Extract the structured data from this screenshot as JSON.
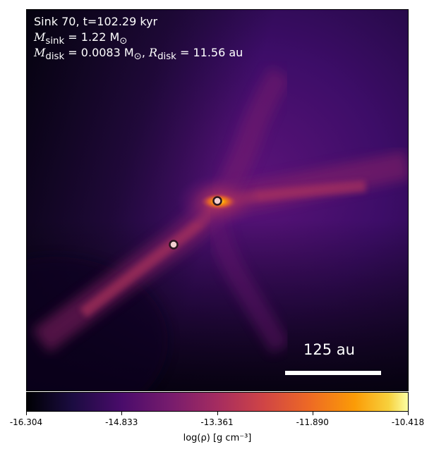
{
  "title_line": "Sink 70, t=102.29 kyr",
  "mass_sink": {
    "symbol": "M",
    "subscript": "sink",
    "value_text": " = 1.22 M",
    "unit_subscript": "⊙"
  },
  "disk": {
    "mass_symbol": "M",
    "mass_subscript": "disk",
    "mass_text": " = 0.0083 M",
    "mass_unit_subscript": "⊙",
    "sep": ", ",
    "radius_symbol": "R",
    "radius_subscript": "disk",
    "radius_text": " = 11.56 au"
  },
  "scale_bar_label": "125 au",
  "colorbar": {
    "ticks": [
      "-16.304",
      "-14.833",
      "-13.361",
      "-11.890",
      "-10.418"
    ],
    "label": "log(ρ) [g cm⁻³]",
    "colormap": "inferno"
  }
}
